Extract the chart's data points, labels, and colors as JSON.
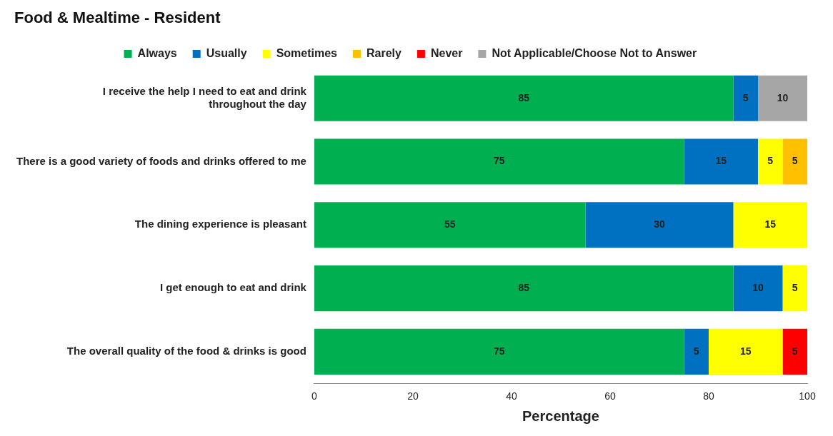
{
  "chart_data": {
    "type": "bar",
    "orientation": "horizontal",
    "stacked": true,
    "title": "Food & Mealtime - Resident",
    "xlabel": "Percentage",
    "categories": [
      "I receive the help I need to eat and drink throughout the day",
      "There is a good variety of foods and drinks offered to me",
      "The dining experience is pleasant",
      "I get enough to eat and drink",
      "The overall quality of the food & drinks is good"
    ],
    "series": [
      {
        "name": "Always",
        "color": "#00b050",
        "values": [
          85,
          75,
          55,
          85,
          75
        ]
      },
      {
        "name": "Usually",
        "color": "#0070c0",
        "values": [
          5,
          15,
          30,
          10,
          5
        ]
      },
      {
        "name": "Sometimes",
        "color": "#ffff00",
        "values": [
          null,
          5,
          15,
          5,
          15
        ]
      },
      {
        "name": "Rarely",
        "color": "#ffc000",
        "values": [
          null,
          5,
          null,
          null,
          null
        ]
      },
      {
        "name": "Never",
        "color": "#ff0000",
        "values": [
          null,
          null,
          null,
          null,
          5
        ]
      },
      {
        "name": "Not Applicable/Choose Not to Answer",
        "color": "#a6a6a6",
        "values": [
          10,
          null,
          null,
          null,
          null
        ]
      }
    ],
    "xlim": [
      0,
      100
    ],
    "xticks": [
      0,
      20,
      40,
      60,
      80,
      100
    ],
    "grid": false,
    "legend": "top",
    "data_labels": true
  }
}
